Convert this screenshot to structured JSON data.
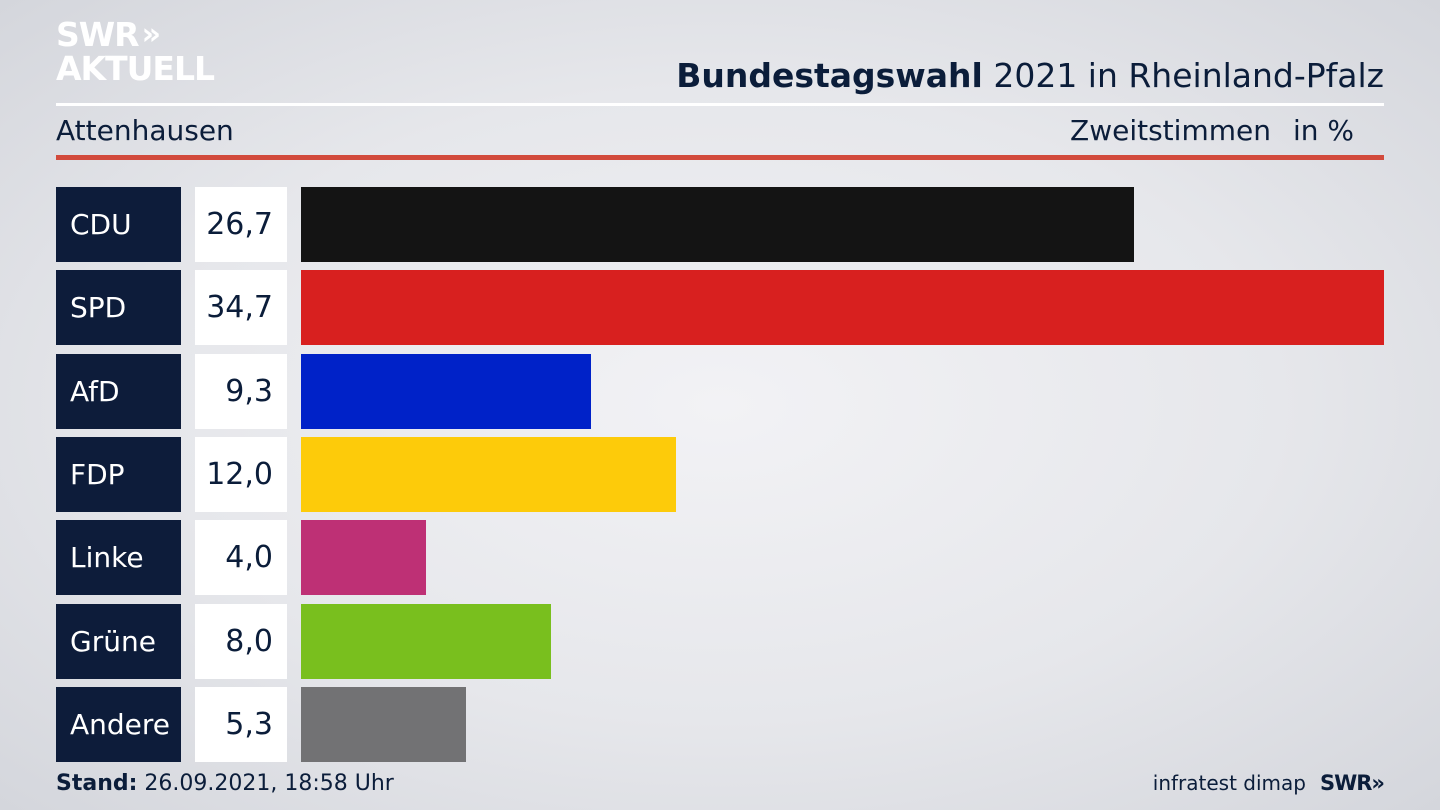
{
  "logo": {
    "line1": "SWR",
    "chevrons": "»",
    "line2": "AKTUELL"
  },
  "header": {
    "title_bold": "Bundestagswahl",
    "title_rest": " 2021 in Rheinland-Pfalz",
    "location": "Attenhausen",
    "metric": "Zweitstimmen",
    "unit": "in %"
  },
  "chart_data": {
    "type": "bar",
    "orientation": "horizontal",
    "categories": [
      "CDU",
      "SPD",
      "AfD",
      "FDP",
      "Linke",
      "Grüne",
      "Andere"
    ],
    "values": [
      26.7,
      34.7,
      9.3,
      12.0,
      4.0,
      8.0,
      5.3
    ],
    "value_labels": [
      "26,7",
      "34,7",
      "9,3",
      "12,0",
      "4,0",
      "8,0",
      "5,3"
    ],
    "colors": [
      "#141414",
      "#d8201f",
      "#0022c8",
      "#fdcb0a",
      "#be3075",
      "#79bf1e",
      "#727274"
    ],
    "xlim": [
      0,
      34.7
    ],
    "grid": false
  },
  "footer": {
    "stand_label": "Stand:",
    "stand_value": " 26.09.2021, 18:58 Uhr",
    "source": "infratest dimap",
    "brand": "SWR»"
  }
}
